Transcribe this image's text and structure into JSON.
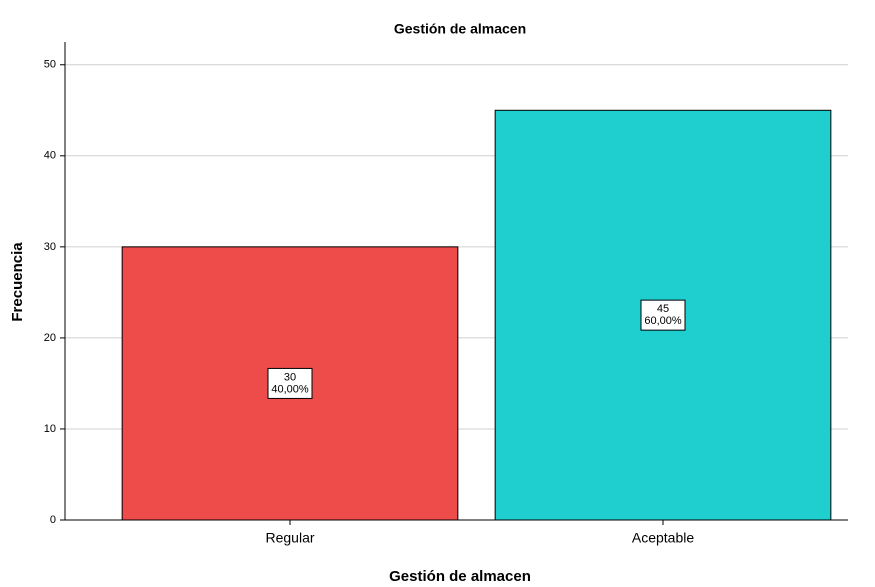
{
  "chart_data": {
    "type": "bar",
    "title": "Gestión de almacen",
    "x_label": "Gestión de almacen",
    "y_label": "Frecuencia",
    "categories": [
      "Regular",
      "Aceptable"
    ],
    "values": [
      30,
      45
    ],
    "percentages": [
      40,
      60
    ],
    "percentage_labels": [
      "40,00%",
      "60,00%"
    ],
    "colors": [
      "#ee4b4b",
      "#1fcece"
    ],
    "ylim": [
      0,
      52.5
    ],
    "yticks": [
      0,
      10,
      20,
      30,
      40,
      50
    ],
    "grid": true
  }
}
